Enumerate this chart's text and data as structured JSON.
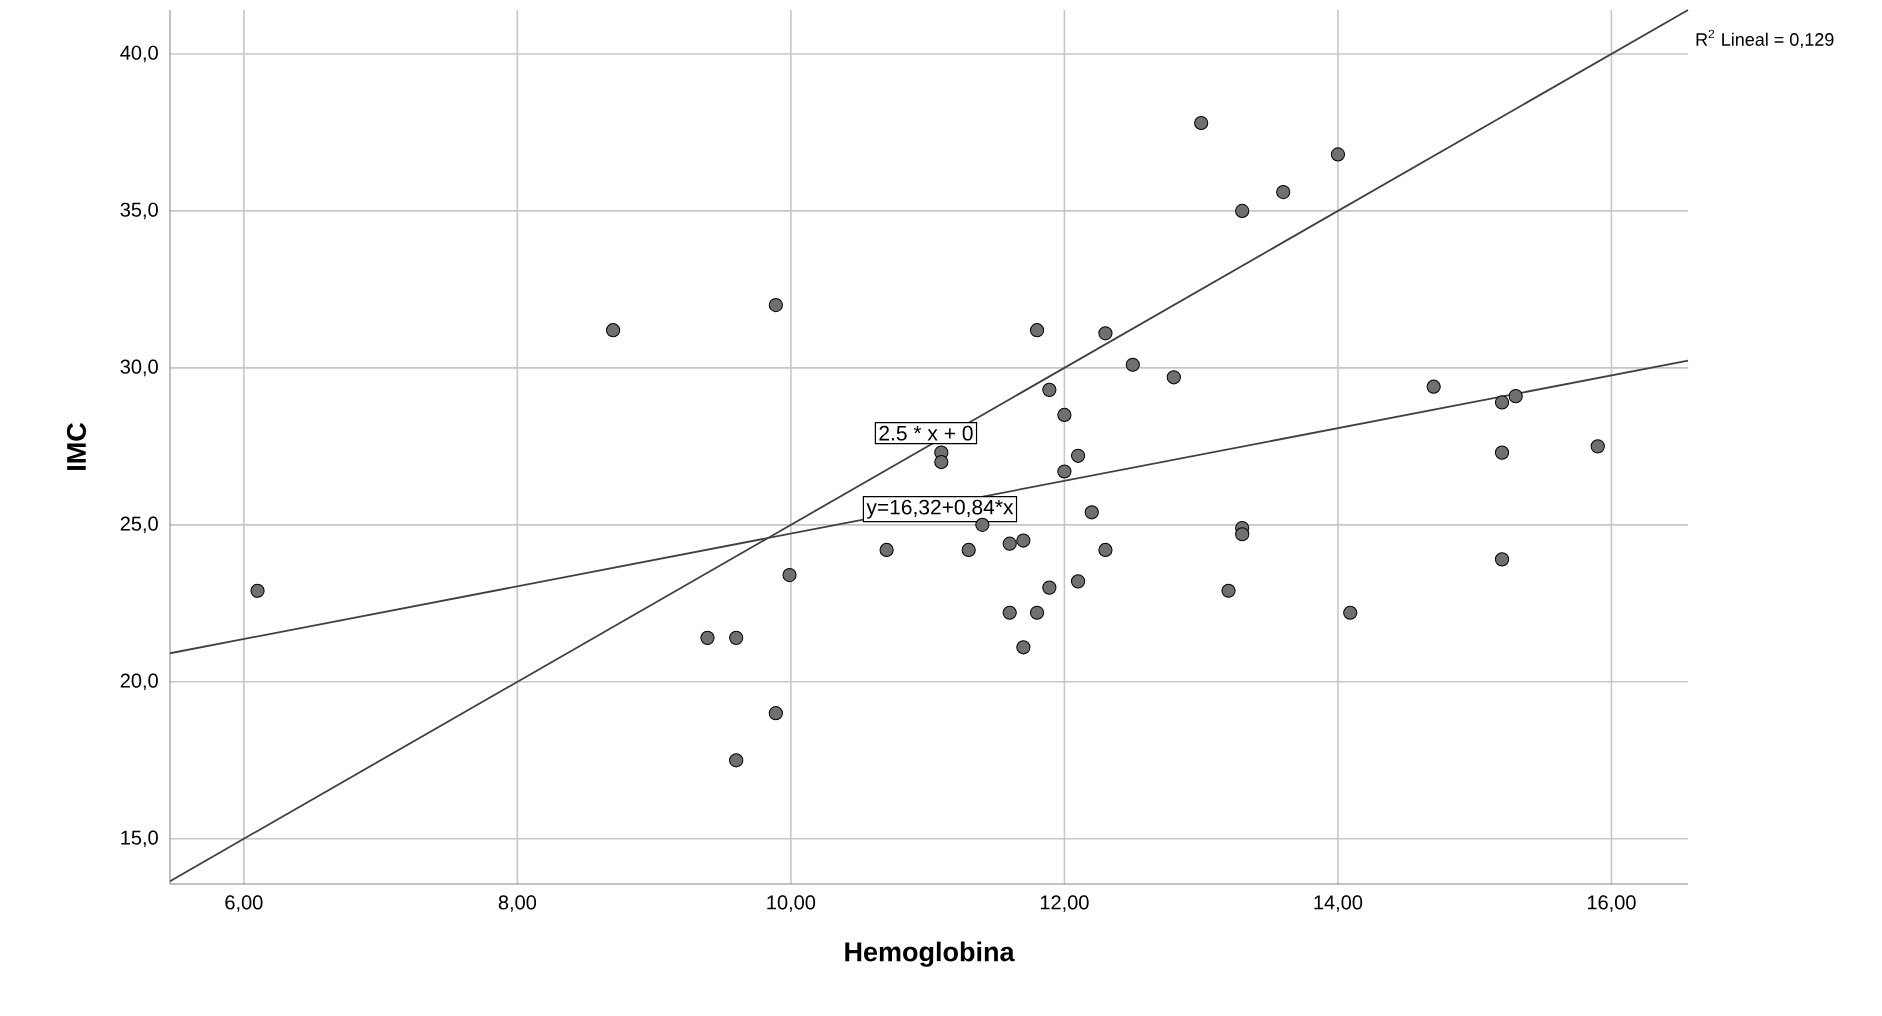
{
  "chart_data": {
    "type": "scatter",
    "xlabel": "Hemoglobina",
    "ylabel": "IMC",
    "xlim": [
      5.46,
      16.56
    ],
    "ylim": [
      13.56,
      41.4
    ],
    "xticks": [
      {
        "value": 6,
        "label": "6,00"
      },
      {
        "value": 8,
        "label": "8,00"
      },
      {
        "value": 10,
        "label": "10,00"
      },
      {
        "value": 12,
        "label": "12,00"
      },
      {
        "value": 14,
        "label": "14,00"
      },
      {
        "value": 16,
        "label": "16,00"
      }
    ],
    "yticks": [
      {
        "value": 15,
        "label": "15,0"
      },
      {
        "value": 20,
        "label": "20,0"
      },
      {
        "value": 25,
        "label": "25,0"
      },
      {
        "value": 30,
        "label": "30,0"
      },
      {
        "value": 35,
        "label": "35,0"
      },
      {
        "value": 40,
        "label": "40,0"
      }
    ],
    "grid": true,
    "series": [
      {
        "color": "#707070",
        "marker": "circle",
        "x": [
          6.1,
          8.7,
          9.89,
          10.7,
          9.99,
          9.39,
          9.6,
          9.89,
          9.6,
          13.0,
          14.0,
          13.6,
          13.3,
          11.8,
          12.3,
          12.5,
          12.8,
          11.89,
          12.0,
          14.7,
          15.2,
          15.3,
          15.2,
          15.9,
          11.1,
          11.1,
          12.1,
          12.0,
          12.2,
          11.4,
          11.3,
          11.6,
          11.7,
          12.3,
          13.3,
          13.3,
          11.89,
          12.1,
          13.2,
          11.6,
          11.8,
          14.09,
          11.7,
          15.2
        ],
        "values": [
          22.9,
          31.2,
          32.0,
          24.2,
          23.4,
          21.4,
          21.4,
          19.0,
          17.5,
          37.8,
          36.8,
          35.6,
          35.0,
          31.2,
          31.1,
          30.1,
          29.7,
          29.3,
          28.5,
          29.4,
          28.9,
          29.1,
          27.3,
          27.5,
          27.3,
          27.0,
          27.2,
          26.7,
          25.4,
          25.0,
          24.2,
          24.4,
          24.5,
          24.2,
          24.9,
          24.7,
          23.0,
          23.2,
          22.9,
          22.2,
          22.2,
          22.2,
          21.1,
          23.9
        ]
      },
      {
        "type": "line",
        "color": "#404040",
        "marker": "none",
        "x": [
          5.46,
          16.56
        ],
        "values": [
          20.91,
          30.23
        ]
      },
      {
        "type": "line",
        "color": "#404040",
        "marker": "none",
        "x": [
          5.46,
          16.56
        ],
        "values": [
          13.65,
          41.4
        ]
      }
    ],
    "annotations": [
      {
        "text": "y=16,32+0,84*x",
        "x": 11.09,
        "y": 25.5
      },
      "2.5 * x + 0",
      "R$^{2}$ Lineal = 0,129"
    ]
  }
}
